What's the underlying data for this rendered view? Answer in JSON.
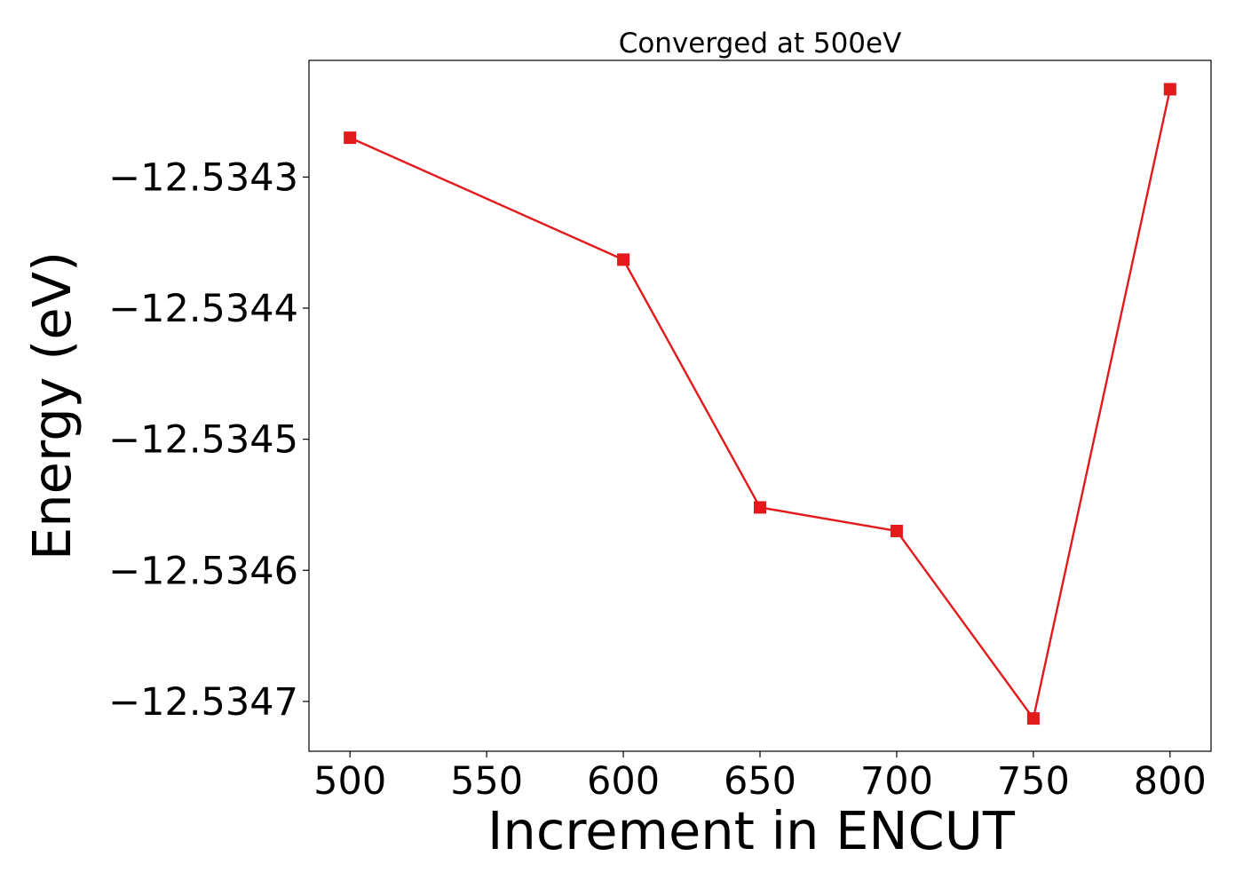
{
  "chart_data": {
    "type": "line",
    "title": "Converged at 500eV",
    "xlabel": "Increment in ENCUT",
    "ylabel": "Energy (eV)",
    "x": [
      500,
      600,
      650,
      700,
      750,
      800
    ],
    "series": [
      {
        "values": [
          -12.53427,
          -12.534363,
          -12.534552,
          -12.53457,
          -12.534713,
          -12.534233
        ],
        "color": "#e31a1c",
        "marker": "square"
      }
    ],
    "xticks": [
      500,
      550,
      600,
      650,
      700,
      750,
      800
    ],
    "xtick_labels": [
      "500",
      "550",
      "600",
      "650",
      "700",
      "750",
      "800"
    ],
    "yticks": [
      -12.5343,
      -12.5344,
      -12.5345,
      -12.5346,
      -12.5347
    ],
    "ytick_labels": [
      "−12.5343",
      "−12.5344",
      "−12.5345",
      "−12.5346",
      "−12.5347"
    ],
    "xlim": [
      485,
      815
    ],
    "ylim": [
      -12.534738,
      -12.534211
    ],
    "grid": false,
    "legend": "none"
  }
}
